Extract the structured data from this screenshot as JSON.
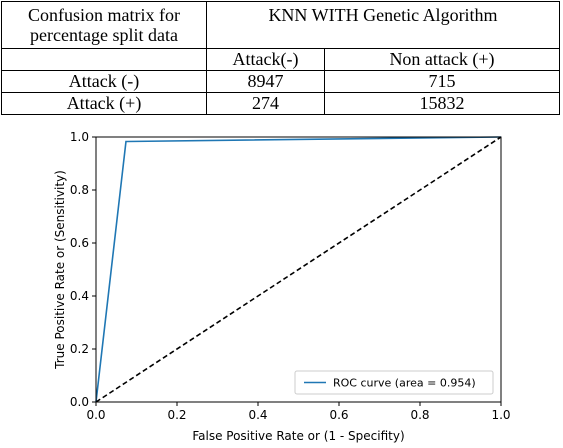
{
  "table": {
    "corner_label_line1": "Confusion matrix for",
    "corner_label_line2": "percentage split data",
    "title": "KNN WITH Genetic Algorithm",
    "col_headers": [
      "Attack(-)",
      "Non attack (+)"
    ],
    "rows": [
      {
        "label": "Attack (-)",
        "values": [
          "8947",
          "715"
        ]
      },
      {
        "label": "Attack (+)",
        "values": [
          "274",
          "15832"
        ]
      }
    ]
  },
  "chart_data": {
    "type": "line",
    "title": "",
    "xlabel": "False Positive Rate or (1 - Specifity)",
    "ylabel": "True Positive Rate or (Sensitivity)",
    "xlim": [
      0.0,
      1.0
    ],
    "ylim": [
      0.0,
      1.0
    ],
    "x_ticks": [
      "0.0",
      "0.2",
      "0.4",
      "0.6",
      "0.8",
      "1.0"
    ],
    "y_ticks": [
      "0.0",
      "0.2",
      "0.4",
      "0.6",
      "0.8",
      "1.0"
    ],
    "series": [
      {
        "name": "ROC curve (area = 0.954)",
        "color": "#1f77b4",
        "style": "solid",
        "x": [
          0.0,
          0.074,
          1.0
        ],
        "y": [
          0.0,
          0.983,
          1.0
        ]
      },
      {
        "color": "#000000",
        "style": "dashed",
        "x": [
          0.0,
          1.0
        ],
        "y": [
          0.0,
          1.0
        ]
      }
    ],
    "legend": {
      "placement": "lower-right"
    },
    "grid": false
  }
}
